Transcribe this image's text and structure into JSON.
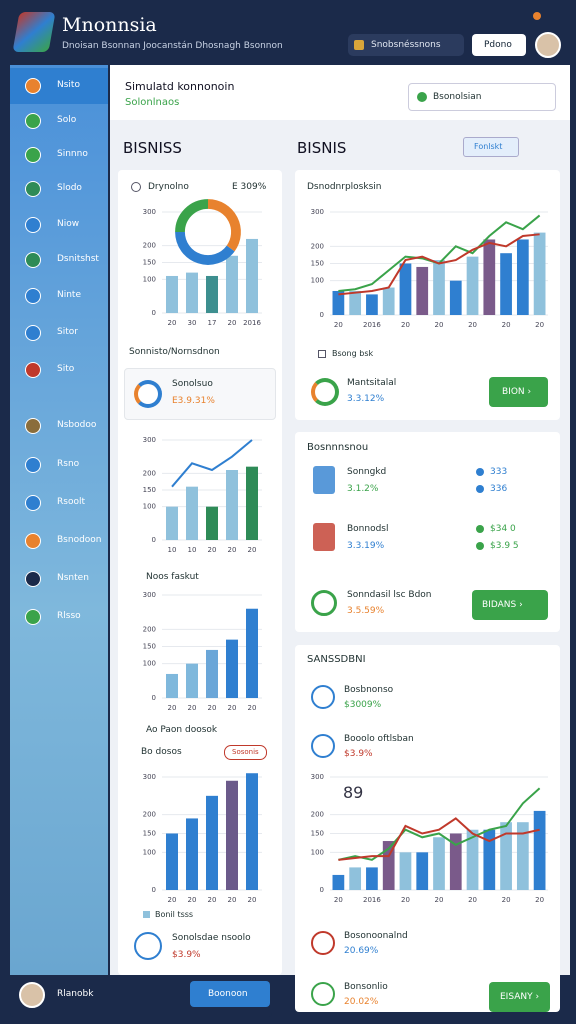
{
  "header": {
    "title": "Mnonnsia",
    "subtitle": "Dnoisan Bsonnan Joocanstán Dhosnagh Bsonnon",
    "search": "Snobsnéssnons",
    "button": "Pdono"
  },
  "sidebar": {
    "items": [
      "Nsito",
      "Solo",
      "Sinnno",
      "Slodo",
      "Niow",
      "Dsnitshst",
      "Ninte",
      "Sitor",
      "Sito",
      "Nsbodoo",
      "Rsno",
      "Rsoolt",
      "Bsnodoon",
      "Nsnten",
      "Rlsso"
    ],
    "user": "Rlanobk",
    "button": "Boonoon"
  },
  "topbar": {
    "title": "Simulatd konnonoin",
    "subtitle": "Solonlnaos",
    "search": "Bsonolsian"
  },
  "sections": {
    "left": "BISNISS",
    "right": "BISNIS",
    "button": "Fonlskt"
  },
  "left": {
    "card1": {
      "title": "Drynolno",
      "value": "E 309%"
    },
    "heading2": "Sonnisto/Nornsdnon",
    "item": {
      "title": "Sonolsuo",
      "value": "E3.9.31%"
    },
    "heading3": "Noos faskut",
    "heading4": "Ao Paon doosok",
    "heading5": "Bo dosos",
    "badge": "Sosonis",
    "legend": "Bonil tsss",
    "footer": {
      "title": "Sonolsdae nsoolo",
      "value": "$3.9%"
    }
  },
  "right_a": {
    "title": "Dsnodnrplosksin",
    "legend": "Bsong bsk",
    "item": {
      "title": "Mantsitalal",
      "value": "3.3.12%"
    },
    "button": "BION ›"
  },
  "right_b": {
    "title": "Bosnnnsnou",
    "rows": [
      {
        "title": "Sonngkd",
        "value": "3.1.2%",
        "stats": [
          "333",
          "336"
        ]
      },
      {
        "title": "Bonnodsl",
        "value": "3.3.19%",
        "stats": [
          "$34 0",
          "$3.9 5"
        ]
      }
    ],
    "item": {
      "title": "Sonndasil lsc Bdon",
      "value": "3.5.59%"
    },
    "button": "BIDANS ›"
  },
  "right_c": {
    "title": "SANSSDBNI",
    "rows": [
      {
        "title": "Bosbnonso",
        "value": "$3009%"
      },
      {
        "title": "Booolo oftlsban",
        "value": "$3.9%"
      },
      {
        "title": "Bosonoonalnd",
        "value": "20.69%"
      },
      {
        "title": "Bonsonlio",
        "value": "20.02%"
      }
    ],
    "chart_label": "89",
    "button": "EISANY ›"
  },
  "charts": [
    {
      "type": "bar",
      "ylim": [
        0,
        300
      ],
      "yticks": [
        0,
        100,
        150,
        200,
        300
      ],
      "categories": [
        "20",
        "30",
        "17",
        "20",
        "2016"
      ],
      "series": [
        {
          "colors": [
            "#8fc1dc",
            "#8fc1dc",
            "#3d8f8f",
            "#8fc1dc",
            "#8fc1dc"
          ],
          "values": [
            110,
            120,
            110,
            170,
            220
          ]
        }
      ]
    },
    {
      "type": "pie",
      "values": [
        35,
        40,
        25
      ],
      "colors": [
        "#e8822e",
        "#2f7fd0",
        "#3aa34a"
      ]
    },
    {
      "type": "bar",
      "ylim": [
        0,
        300
      ],
      "yticks": [
        0,
        100,
        150,
        200,
        300
      ],
      "categories": [
        "10",
        "10",
        "20",
        "20",
        "20"
      ],
      "series": [
        {
          "colors": [
            "#8fc1dc",
            "#8fc1dc",
            "#2e8b57",
            "#8fc1dc",
            "#2e8b57"
          ],
          "values": [
            100,
            160,
            100,
            210,
            220
          ]
        },
        {
          "type": "line",
          "color": "#2f7fd0",
          "values": [
            160,
            230,
            210,
            250,
            300
          ]
        }
      ]
    },
    {
      "type": "bar",
      "ylim": [
        0,
        300
      ],
      "yticks": [
        0,
        100,
        150,
        200,
        300
      ],
      "categories": [
        "20",
        "20",
        "20",
        "20",
        "20"
      ],
      "series": [
        {
          "colors": [
            "#7fb8dc",
            "#7fb8dc",
            "#6aa6d8",
            "#2f7fd0",
            "#2f7fd0"
          ],
          "values": [
            70,
            100,
            140,
            170,
            260
          ]
        }
      ]
    },
    {
      "type": "bar",
      "ylim": [
        0,
        300
      ],
      "yticks": [
        0,
        100,
        150,
        200,
        300
      ],
      "categories": [
        "20",
        "20",
        "20",
        "20",
        "20"
      ],
      "series": [
        {
          "colors": [
            "#2f7fd0",
            "#2f7fd0",
            "#2f7fd0",
            "#6b5a8a",
            "#2f7fd0"
          ],
          "values": [
            150,
            190,
            250,
            290,
            310
          ]
        }
      ]
    },
    {
      "type": "bar",
      "ylim": [
        0,
        300
      ],
      "yticks": [
        0,
        100,
        150,
        200,
        300
      ],
      "categories": [
        "20",
        null,
        "2016",
        null,
        "20",
        null,
        "20",
        null,
        "20",
        null,
        "20",
        null,
        "20"
      ],
      "series": [
        {
          "colors": [
            "#2f7fd0",
            "#8fc1dc",
            "#2f7fd0",
            "#8fc1dc",
            "#2f7fd0",
            "#7a5a8a",
            "#8fc1dc",
            "#2f7fd0",
            "#8fc1dc",
            "#7a5a8a",
            "#2f7fd0",
            "#2f7fd0",
            "#8fc1dc"
          ],
          "values": [
            70,
            70,
            60,
            80,
            150,
            140,
            160,
            100,
            170,
            220,
            180,
            220,
            240
          ]
        },
        {
          "type": "line",
          "color": "#3aa34a",
          "values": [
            70,
            75,
            90,
            130,
            170,
            165,
            150,
            200,
            180,
            230,
            270,
            250,
            290
          ]
        },
        {
          "type": "line",
          "color": "#c0392b",
          "values": [
            60,
            65,
            70,
            80,
            160,
            170,
            150,
            160,
            190,
            210,
            200,
            230,
            235
          ]
        }
      ]
    },
    {
      "type": "bar",
      "ylim": [
        0,
        300
      ],
      "yticks": [
        0,
        100,
        150,
        200,
        300
      ],
      "categories": [
        "20",
        null,
        "2016",
        null,
        "20",
        null,
        "20",
        null,
        "20",
        null,
        "20",
        null,
        "20"
      ],
      "series": [
        {
          "colors": [
            "#2f7fd0",
            "#8fc1dc",
            "#2f7fd0",
            "#7a5a8a",
            "#8fc1dc",
            "#2f7fd0",
            "#8fc1dc",
            "#7a5a8a",
            "#8fc1dc",
            "#2f7fd0",
            "#8fc1dc",
            "#8fc1dc",
            "#2f7fd0"
          ],
          "values": [
            40,
            60,
            60,
            130,
            100,
            100,
            140,
            150,
            160,
            160,
            180,
            180,
            210
          ]
        },
        {
          "type": "line",
          "color": "#3aa34a",
          "values": [
            80,
            90,
            80,
            110,
            160,
            140,
            150,
            120,
            140,
            160,
            170,
            230,
            270
          ]
        },
        {
          "type": "line",
          "color": "#c0392b",
          "values": [
            80,
            85,
            90,
            90,
            170,
            150,
            160,
            190,
            150,
            130,
            150,
            150,
            160
          ]
        }
      ]
    }
  ]
}
